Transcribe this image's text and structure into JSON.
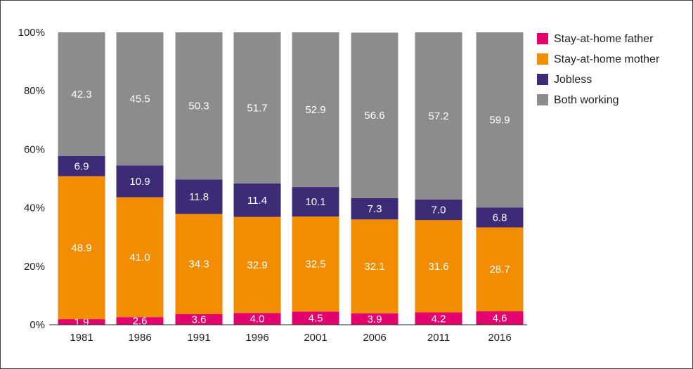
{
  "chart_data": {
    "type": "bar",
    "stacked": true,
    "categories": [
      "1981",
      "1986",
      "1991",
      "1996",
      "2001",
      "2006",
      "2011",
      "2016"
    ],
    "series": [
      {
        "name": "Stay-at-home father",
        "color": "#e5006f",
        "values": [
          1.9,
          2.6,
          3.6,
          4.0,
          4.5,
          3.9,
          4.2,
          4.6
        ],
        "labels": [
          "1.9",
          "2.6",
          "3.6",
          "4.0",
          "4.5",
          "3.9",
          "4.2",
          "4.6"
        ]
      },
      {
        "name": "Stay-at-home mother",
        "color": "#f28c00",
        "values": [
          48.9,
          41.0,
          34.3,
          32.9,
          32.5,
          32.1,
          31.6,
          28.7
        ],
        "labels": [
          "48.9",
          "41.0",
          "34.3",
          "32.9",
          "32.5",
          "32.1",
          "31.6",
          "28.7"
        ]
      },
      {
        "name": "Jobless",
        "color": "#3d2b78",
        "values": [
          6.9,
          10.9,
          11.8,
          11.4,
          10.1,
          7.3,
          7.0,
          6.8
        ],
        "labels": [
          "6.9",
          "10.9",
          "11.8",
          "11.4",
          "10.1",
          "7.3",
          "7.0",
          "6.8"
        ]
      },
      {
        "name": "Both working",
        "color": "#8c8c8e",
        "values": [
          42.3,
          45.5,
          50.3,
          51.7,
          52.9,
          56.6,
          57.2,
          59.9
        ],
        "labels": [
          "42.3",
          "45.5",
          "50.3",
          "51.7",
          "52.9",
          "56.6",
          "57.2",
          "59.9"
        ]
      }
    ],
    "yticks": [
      "0%",
      "20%",
      "40%",
      "60%",
      "80%",
      "100%"
    ],
    "ylim": [
      0,
      100
    ],
    "legend_position": "top-right",
    "title": "",
    "xlabel": "",
    "ylabel": ""
  }
}
